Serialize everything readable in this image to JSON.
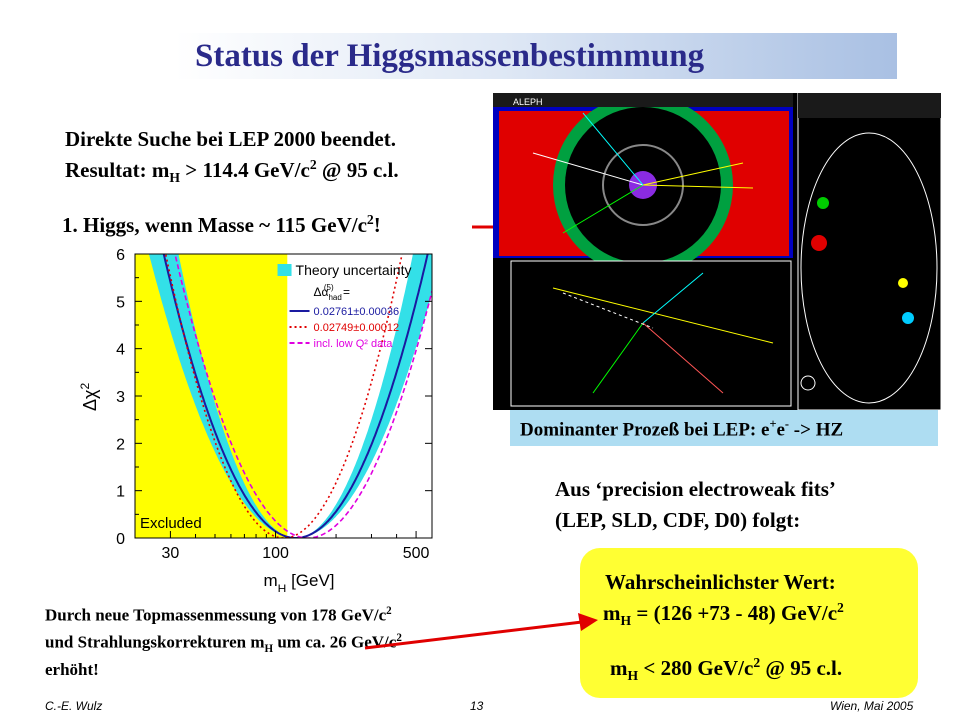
{
  "title": "Status der Higgsmassenbestimmung",
  "direct_search": {
    "line1": "Direkte Suche bei LEP 2000 beendet.",
    "line2_prefix": "Resultat: m",
    "line2_sub": "H",
    "line2_mid": " > 114.4 GeV/c",
    "line2_sup": "2",
    "line2_suffix": " @ 95 c.l."
  },
  "higgs_note": {
    "prefix": "1. Higgs, wenn Masse ~ 115 GeV/c",
    "sup": "2",
    "suffix": "!"
  },
  "dominant_process": {
    "prefix": "Dominanter Prozeß bei LEP: e",
    "sup1": "+",
    "mid": "e",
    "sup2": "-",
    "suffix": " -> HZ"
  },
  "ewfits": {
    "line1": "Aus ‘precision electroweak fits’",
    "line2": "(LEP, SLD, CDF, D0) folgt:"
  },
  "result_box": {
    "heading": "Wahrscheinlichster Wert:",
    "line1_prefix": "m",
    "line1_sub": "H",
    "line1_mid": " = (126 +73 - 48) GeV/c",
    "line1_sup": "2",
    "line2_prefix": "m",
    "line2_sub": "H",
    "line2_mid": " < 280 GeV/c",
    "line2_sup": "2",
    "line2_suffix": " @ 95 c.l."
  },
  "topmass_note": {
    "line1_prefix": "Durch neue Topmassenmessung von 178 GeV/c",
    "line1_sup": "2",
    "line2_prefix": "und Strahlungskorrekturen m",
    "line2_sub": "H",
    "line2_mid": " um ca. 26 GeV/c",
    "line2_sup": "2",
    "line3": "erhöht!"
  },
  "footer": {
    "left": "C.-E. Wulz",
    "center": "13",
    "right": "Wien, Mai 2005"
  },
  "event_display": {
    "label": "ALEPH"
  },
  "chart_data": {
    "type": "line",
    "xlabel": "m",
    "xlabel_sub": "H",
    "xlabel_unit": "[GeV]",
    "ylabel": "Δχ",
    "ylabel_sup": "2",
    "x_scale": "log",
    "xlim": [
      20,
      600
    ],
    "ylim": [
      0,
      6
    ],
    "x_ticks": [
      "30",
      "100",
      "500"
    ],
    "y_ticks": [
      "0",
      "1",
      "2",
      "3",
      "4",
      "5",
      "6"
    ],
    "excluded_region": {
      "x_max": 114.4,
      "label": "Excluded",
      "color": "#ffff00"
    },
    "legend": {
      "title": "Theory uncertainty",
      "alpha_label": "Δα",
      "alpha_sub": "had",
      "alpha_sup": "(5)",
      "alpha_eq": " ="
    },
    "series": [
      {
        "name": "0.02761±0.00036",
        "style": "solid",
        "color": "#1a1aa0",
        "min_x": 126,
        "width": 0.268
      },
      {
        "name": "0.02749±0.00012",
        "style": "dotted",
        "color": "#e00000",
        "min_x": 110,
        "width": 0.24
      },
      {
        "name": "incl. low Q² data",
        "style": "dashed",
        "color": "#e000e0",
        "min_x": 145,
        "width": 0.27
      }
    ],
    "band": {
      "color": "#33e0e8",
      "half_width": 0.03
    }
  }
}
